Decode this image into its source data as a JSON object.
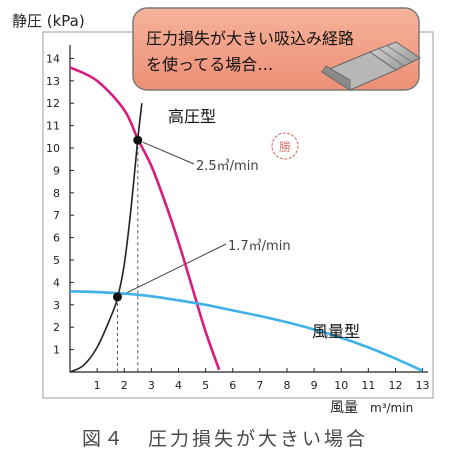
{
  "chart_data": {
    "type": "line",
    "ylabel": "静圧 (kPa)",
    "xlabel": "風量",
    "xunit": "m³/min",
    "xlim": [
      0,
      13.2
    ],
    "ylim": [
      0,
      14.6
    ],
    "x_ticks": [
      1,
      2,
      3,
      4,
      5,
      6,
      7,
      8,
      9,
      10,
      11,
      12,
      13
    ],
    "y_ticks": [
      1,
      2,
      3,
      4,
      5,
      6,
      7,
      8,
      9,
      10,
      11,
      12,
      13,
      14
    ],
    "grid": false,
    "callout_text": [
      "圧力損失が大きい吸込み経路",
      "を使ってる場合…"
    ],
    "series": [
      {
        "name": "高圧型",
        "color": "#d81b7f",
        "x": [
          0,
          1,
          2,
          2.5,
          3,
          3.5,
          4,
          4.5,
          5,
          5.5
        ],
        "y": [
          13.6,
          13.0,
          11.7,
          10.4,
          9.2,
          7.6,
          5.8,
          3.8,
          1.8,
          0.1
        ]
      },
      {
        "name": "風量型",
        "color": "#3fb0e8",
        "x": [
          0,
          1,
          2,
          3,
          4,
          5,
          6,
          7,
          8,
          9,
          10,
          11,
          12,
          13
        ],
        "y": [
          3.6,
          3.57,
          3.5,
          3.38,
          3.2,
          3.0,
          2.75,
          2.5,
          2.22,
          1.9,
          1.53,
          1.1,
          0.6,
          0.05
        ]
      },
      {
        "name": "",
        "color": "#222222",
        "x": [
          0,
          0.5,
          1,
          1.5,
          1.75,
          2,
          2.25,
          2.5,
          2.65
        ],
        "y": [
          0,
          0.3,
          1.1,
          2.45,
          3.3,
          4.8,
          7.3,
          10.4,
          12.0
        ]
      }
    ],
    "operating_points": [
      {
        "label": "1.7㎥/min",
        "x": 1.75,
        "y": 3.35
      },
      {
        "label": "2.5㎥/min",
        "x": 2.5,
        "y": 10.35
      }
    ]
  },
  "caption": "図４　圧力損失が大きい場合"
}
